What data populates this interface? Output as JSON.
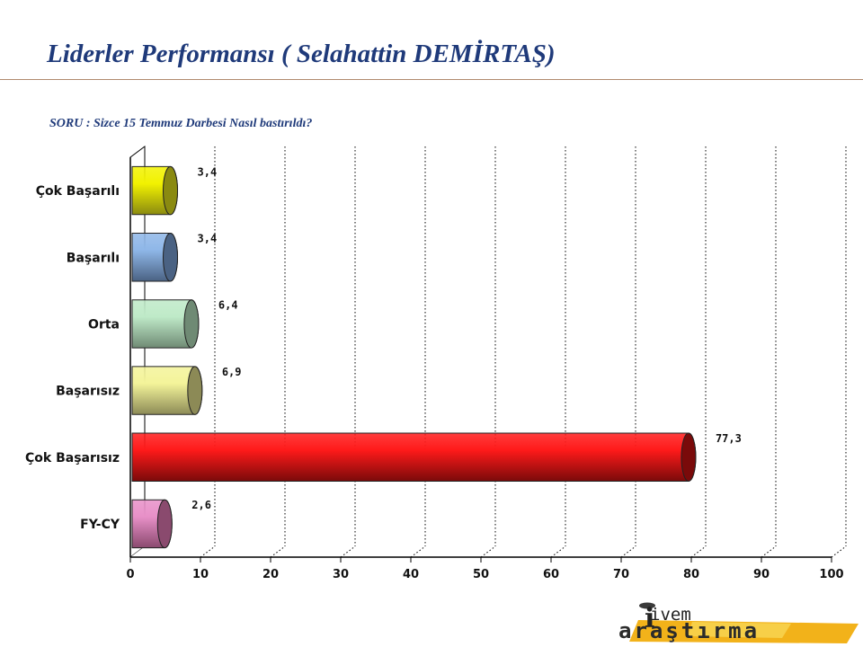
{
  "header": {
    "title": "Liderler Performansı ( Selahattin DEMİRTAŞ)",
    "question": "SORU : Sizce 15 Temmuz Darbesi Nasıl bastırıldı?"
  },
  "logo": {
    "line1": "ivem",
    "line2": "araştırma"
  },
  "chart_data": {
    "type": "bar",
    "orientation": "horizontal",
    "style": "3d-cylinder",
    "categories": [
      "Çok Başarılı",
      "Başarılı",
      "Orta",
      "Başarısız",
      "Çok Başarısız",
      "FY-CY"
    ],
    "values": [
      3.4,
      3.4,
      6.4,
      6.9,
      77.3,
      2.6
    ],
    "value_labels": [
      "3,4",
      "3,4",
      "6,4",
      "6,9",
      "77,3",
      "2,6"
    ],
    "xlim": [
      0,
      100
    ],
    "xticks": [
      "0",
      "10",
      "20",
      "30",
      "40",
      "50",
      "60",
      "70",
      "80",
      "90",
      "100"
    ],
    "grid": "vertical-dotted",
    "colors": [
      {
        "fill": "#f2f200",
        "end": "#8a8a10"
      },
      {
        "fill": "#8fb7e8",
        "end": "#4a6283"
      },
      {
        "fill": "#bfeac8",
        "end": "#6f8a74"
      },
      {
        "fill": "#f4f49a",
        "end": "#8c8a56"
      },
      {
        "fill": "#ff1a1a",
        "end": "#7a0a0a"
      },
      {
        "fill": "#e890c8",
        "end": "#8a4a6e"
      }
    ]
  }
}
